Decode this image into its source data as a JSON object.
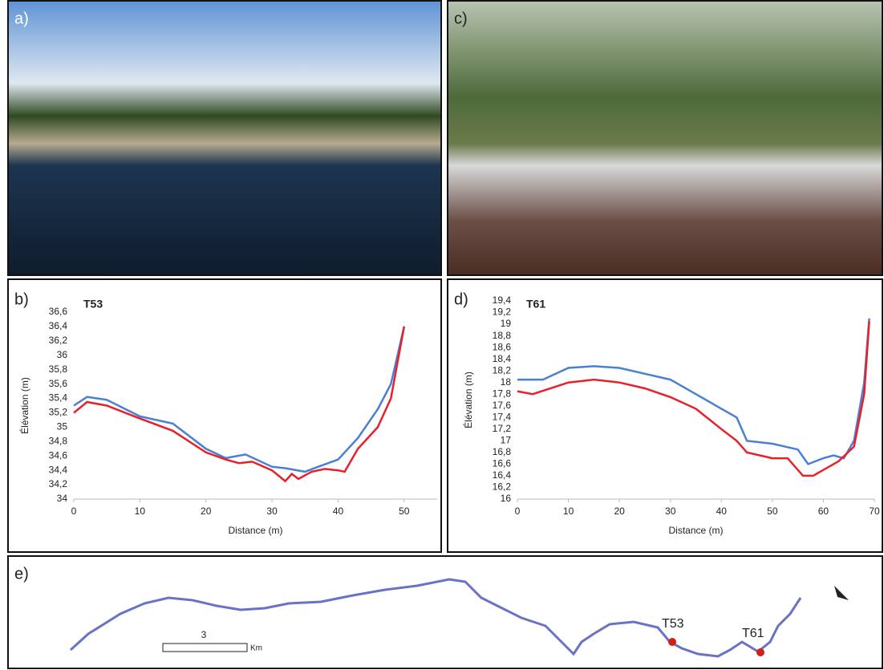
{
  "panels": {
    "a": "a)",
    "b": "b)",
    "c": "c)",
    "d": "d)",
    "e": "e)"
  },
  "map": {
    "site1": "T53",
    "site2": "T61",
    "scale": "3",
    "unit": "Km"
  },
  "chart_data": [
    {
      "type": "line",
      "title": "T53",
      "xlabel": "Distance (m)",
      "ylabel": "Élévation (m)",
      "xlim": [
        0,
        55
      ],
      "xticks": [
        0,
        10,
        20,
        30,
        40,
        50
      ],
      "ylim": [
        34,
        36.6
      ],
      "yticks": [
        34,
        {
          "value": 34.2,
          "label": "34,2"
        },
        {
          "value": 34.4,
          "label": "34,4"
        },
        {
          "value": 34.6,
          "label": "34,6"
        },
        {
          "value": 34.8,
          "label": "34,8"
        },
        35,
        {
          "value": 35.2,
          "label": "35,2"
        },
        {
          "value": 35.4,
          "label": "35,4"
        },
        {
          "value": 35.6,
          "label": "35,6"
        },
        {
          "value": 35.8,
          "label": "35,8"
        },
        36,
        {
          "value": 36.2,
          "label": "36,2"
        },
        {
          "value": 36.4,
          "label": "36,4"
        },
        {
          "value": 36.6,
          "label": "36,6"
        }
      ],
      "series": [
        {
          "color": "#4a7fd4",
          "x": [
            0,
            2,
            5,
            10,
            15,
            20,
            23,
            26,
            30,
            32,
            35,
            37,
            40,
            43,
            46,
            48,
            50
          ],
          "values": [
            35.3,
            35.42,
            35.38,
            35.15,
            35.05,
            34.7,
            34.57,
            34.62,
            34.45,
            34.43,
            34.38,
            34.45,
            34.55,
            34.85,
            35.25,
            35.6,
            36.4
          ]
        },
        {
          "color": "#e8202a",
          "x": [
            0,
            2,
            5,
            10,
            15,
            20,
            23,
            25,
            27,
            30,
            32,
            33,
            34,
            36,
            38,
            40,
            41,
            43,
            46,
            48,
            50
          ],
          "values": [
            35.2,
            35.35,
            35.3,
            35.12,
            34.95,
            34.65,
            34.55,
            34.5,
            34.52,
            34.4,
            34.25,
            34.35,
            34.28,
            34.38,
            34.42,
            34.4,
            34.38,
            34.7,
            35.0,
            35.4,
            36.4
          ]
        }
      ]
    },
    {
      "type": "line",
      "title": "T61",
      "xlabel": "Distance (m)",
      "ylabel": "Élévation (m)",
      "xlim": [
        0,
        70
      ],
      "xticks": [
        0,
        10,
        20,
        30,
        40,
        50,
        60,
        70
      ],
      "ylim": [
        16,
        19.4
      ],
      "yticks": [
        16,
        {
          "value": 16.2,
          "label": "16,2"
        },
        {
          "value": 16.4,
          "label": "16,4"
        },
        {
          "value": 16.6,
          "label": "16,6"
        },
        {
          "value": 16.8,
          "label": "16,8"
        },
        17,
        {
          "value": 17.2,
          "label": "17,2"
        },
        {
          "value": 17.4,
          "label": "17,4"
        },
        {
          "value": 17.6,
          "label": "17,6"
        },
        {
          "value": 17.8,
          "label": "17,8"
        },
        18,
        {
          "value": 18.2,
          "label": "18,2"
        },
        {
          "value": 18.4,
          "label": "18,4"
        },
        {
          "value": 18.6,
          "label": "18,6"
        },
        {
          "value": 18.8,
          "label": "18,8"
        },
        19,
        {
          "value": 19.2,
          "label": "19,2"
        },
        {
          "value": 19.4,
          "label": "19,4"
        }
      ],
      "series": [
        {
          "color": "#4a7fd4",
          "x": [
            0,
            5,
            10,
            15,
            20,
            25,
            30,
            35,
            40,
            43,
            45,
            50,
            55,
            57,
            60,
            62,
            64,
            66,
            68,
            69
          ],
          "values": [
            18.05,
            18.05,
            18.25,
            18.28,
            18.25,
            18.15,
            18.05,
            17.8,
            17.55,
            17.4,
            17.0,
            16.95,
            16.85,
            16.6,
            16.7,
            16.75,
            16.7,
            17.0,
            18.0,
            19.1
          ]
        },
        {
          "color": "#e8202a",
          "x": [
            0,
            3,
            10,
            15,
            20,
            25,
            30,
            35,
            40,
            43,
            45,
            50,
            53,
            56,
            58,
            60,
            63,
            66,
            68,
            69
          ],
          "values": [
            17.85,
            17.8,
            18.0,
            18.05,
            18.0,
            17.9,
            17.75,
            17.55,
            17.2,
            17.0,
            16.8,
            16.7,
            16.7,
            16.4,
            16.4,
            16.5,
            16.65,
            16.9,
            17.8,
            19.05
          ]
        }
      ]
    }
  ]
}
